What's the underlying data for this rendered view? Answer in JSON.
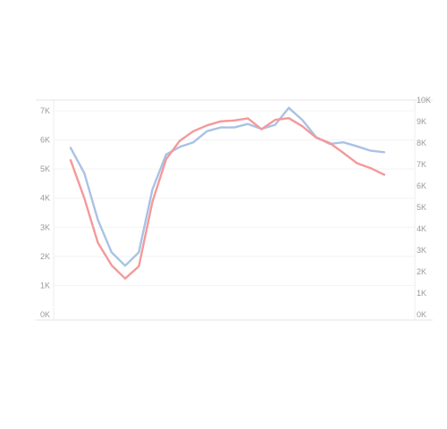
{
  "chart_data": {
    "type": "line",
    "title": "",
    "xlabel": "",
    "ylabel": "",
    "x": [
      0,
      1,
      2,
      3,
      4,
      5,
      6,
      7,
      8,
      9,
      10,
      11,
      12,
      13,
      14,
      15,
      16,
      17,
      18,
      19,
      20,
      21,
      22,
      23,
      24
    ],
    "y_left": {
      "ylim": [
        0,
        7000
      ],
      "ticks": [
        0,
        1000,
        2000,
        3000,
        4000,
        5000,
        6000,
        7000
      ],
      "tick_labels": [
        "0K",
        "1K",
        "2K",
        "3K",
        "4K",
        "5K",
        "6K",
        "7K"
      ]
    },
    "y_right": {
      "ylim": [
        0,
        9500
      ],
      "ticks": [
        0,
        1000,
        2000,
        3000,
        4000,
        5000,
        6000,
        7000,
        8000,
        9000,
        10000
      ],
      "tick_labels": [
        "0K",
        "1K",
        "2K",
        "3K",
        "4K",
        "5K",
        "6K",
        "7K",
        "8K",
        "9K",
        "10K"
      ]
    },
    "series": [
      {
        "axis": "left",
        "color": "#a9c2e4",
        "values": [
          5730,
          4860,
          3250,
          2140,
          1680,
          2140,
          4300,
          5500,
          5760,
          5920,
          6300,
          6430,
          6430,
          6550,
          6380,
          6520,
          7100,
          6680,
          6100,
          5860,
          5920,
          5780,
          5630,
          5580,
          null
        ]
      },
      {
        "axis": "right",
        "color": "#f4999a",
        "values": [
          7200,
          5430,
          3350,
          2300,
          1680,
          2250,
          5260,
          7240,
          8100,
          8550,
          8820,
          9010,
          9050,
          9150,
          8640,
          9080,
          9160,
          8780,
          8250,
          8000,
          7540,
          7060,
          6830,
          6520,
          null
        ]
      }
    ]
  }
}
